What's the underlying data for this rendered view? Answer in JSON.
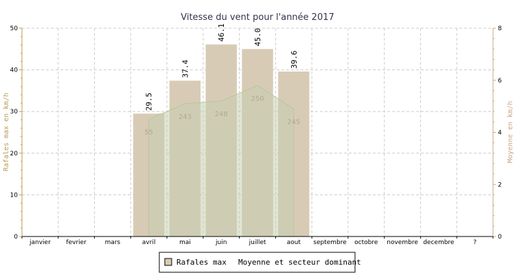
{
  "chart_data": {
    "type": "bar",
    "title": "Vitesse du vent pour l'année 2017",
    "ylabel_left": "Rafales max en km/h",
    "ylabel_right": "Moyenne en km/h",
    "ylim_left": [
      0,
      50
    ],
    "ylim_right": [
      0,
      8
    ],
    "yticks_left": [
      0,
      10,
      20,
      30,
      40,
      50
    ],
    "yticks_right": [
      0,
      2,
      4,
      6,
      8
    ],
    "grid": true,
    "legend_position": "bottom-center",
    "categories": [
      "janvier",
      "fevrier",
      "mars",
      "avril",
      "mai",
      "juin",
      "juillet",
      "aout",
      "septembre",
      "octobre",
      "novembre",
      "decembre",
      "?"
    ],
    "series": [
      {
        "name": "Rafales max",
        "axis": "left",
        "color": "#d8cbb5",
        "values": [
          null,
          null,
          null,
          29.5,
          37.4,
          46.1,
          45.0,
          39.6,
          null,
          null,
          null,
          null,
          null
        ],
        "labels": [
          "",
          "",
          "",
          "29.5",
          "37.4",
          "46.1",
          "45.0",
          "39.6",
          "",
          "",
          "",
          "",
          ""
        ]
      },
      {
        "name": "Moyenne et secteur dominant",
        "axis": "right",
        "color": "#c7cfb0",
        "values": [
          null,
          null,
          null,
          4.5,
          5.1,
          5.2,
          5.8,
          4.9,
          null,
          null,
          null,
          null,
          null
        ],
        "sectors": [
          "",
          "",
          "",
          "55",
          "243",
          "248",
          "250",
          "245",
          "",
          "",
          "",
          "",
          ""
        ]
      }
    ],
    "colors": {
      "axis_left": "#b89c55",
      "axis_right": "#c9a584",
      "grid": "#cccccc",
      "sector_text": "#b3a68e"
    }
  }
}
